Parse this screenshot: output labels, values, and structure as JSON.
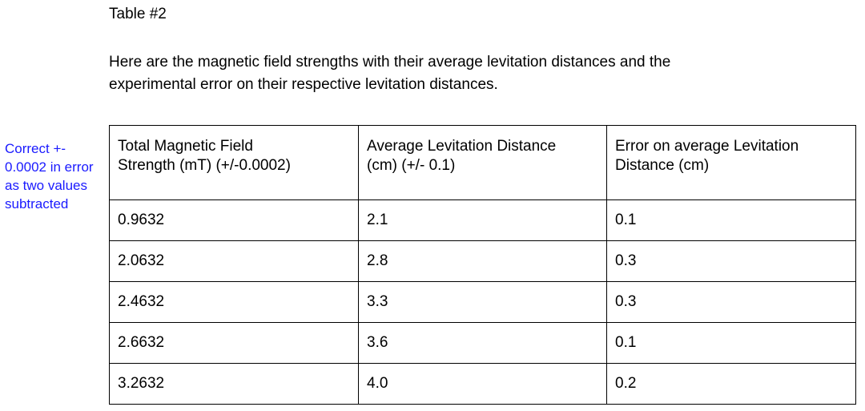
{
  "document": {
    "table_label": "Table #2",
    "intro_lines": [
      "Here are the magnetic field strengths with their average levitation distances and the",
      "experimental error on their respective levitation distances."
    ]
  },
  "comment": {
    "lines": [
      "Correct +-",
      "0.0002 in error",
      "as two values",
      "subtracted"
    ],
    "color": "#1a1aff"
  },
  "table": {
    "headers": [
      [
        "Total Magnetic Field",
        "Strength (mT) (+/-0.0002)"
      ],
      [
        "Average Levitation Distance",
        "(cm) (+/- 0.1)"
      ],
      [
        "Error on average Levitation",
        "Distance (cm)"
      ]
    ],
    "rows": [
      [
        "0.9632",
        "2.1",
        "0.1"
      ],
      [
        "2.0632",
        "2.8",
        "0.3"
      ],
      [
        "2.4632",
        "3.3",
        "0.3"
      ],
      [
        "2.6632",
        "3.6",
        "0.1"
      ],
      [
        "3.2632",
        "4.0",
        "0.2"
      ]
    ]
  }
}
